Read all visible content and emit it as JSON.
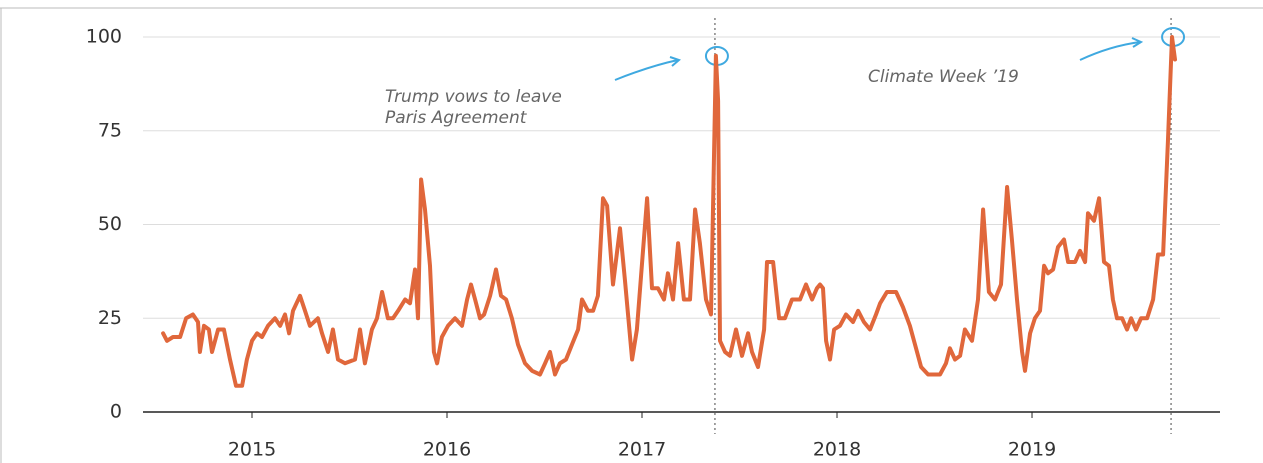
{
  "chart_data": {
    "type": "line",
    "x": [
      2014.544,
      2014.564,
      2014.595,
      2014.631,
      2014.662,
      2014.697,
      2014.723,
      2014.733,
      2014.754,
      2014.779,
      2014.795,
      2014.826,
      2014.856,
      2014.887,
      2014.918,
      2014.949,
      2014.974,
      2015.0,
      2015.026,
      2015.051,
      2015.082,
      2015.118,
      2015.144,
      2015.169,
      2015.19,
      2015.21,
      2015.246,
      2015.272,
      2015.297,
      2015.338,
      2015.359,
      2015.39,
      2015.415,
      2015.441,
      2015.477,
      2015.528,
      2015.554,
      2015.579,
      2015.615,
      2015.641,
      2015.667,
      2015.697,
      2015.723,
      2015.749,
      2015.785,
      2015.81,
      2015.836,
      2015.851,
      2015.867,
      2015.887,
      2015.913,
      2015.933,
      2015.949,
      2015.974,
      2016.005,
      2016.041,
      2016.077,
      2016.103,
      2016.123,
      2016.144,
      2016.169,
      2016.19,
      2016.221,
      2016.251,
      2016.277,
      2016.303,
      2016.333,
      2016.364,
      2016.4,
      2016.436,
      2016.477,
      2016.503,
      2016.528,
      2016.554,
      2016.579,
      2016.61,
      2016.641,
      2016.672,
      2016.692,
      2016.723,
      2016.749,
      2016.774,
      2016.8,
      2016.821,
      2016.851,
      2016.887,
      2016.913,
      2016.949,
      2016.974,
      2017.005,
      2017.026,
      2017.051,
      2017.082,
      2017.113,
      2017.133,
      2017.159,
      2017.185,
      2017.215,
      2017.246,
      2017.272,
      2017.297,
      2017.328,
      2017.354,
      2017.379,
      2017.39,
      2017.4,
      2017.426,
      2017.451,
      2017.482,
      2017.513,
      2017.544,
      2017.564,
      2017.595,
      2017.626,
      2017.641,
      2017.672,
      2017.703,
      2017.733,
      2017.769,
      2017.81,
      2017.841,
      2017.872,
      2017.897,
      2017.913,
      2017.928,
      2017.944,
      2017.964,
      2017.985,
      2018.015,
      2018.046,
      2018.082,
      2018.108,
      2018.138,
      2018.169,
      2018.2,
      2018.221,
      2018.256,
      2018.303,
      2018.338,
      2018.374,
      2018.4,
      2018.431,
      2018.467,
      2018.528,
      2018.559,
      2018.579,
      2018.605,
      2018.631,
      2018.656,
      2018.692,
      2018.723,
      2018.749,
      2018.779,
      2018.81,
      2018.841,
      2018.872,
      2018.897,
      2018.923,
      2018.949,
      2018.964,
      2018.99,
      2019.015,
      2019.041,
      2019.062,
      2019.082,
      2019.108,
      2019.133,
      2019.164,
      2019.185,
      2019.221,
      2019.246,
      2019.272,
      2019.287,
      2019.318,
      2019.344,
      2019.369,
      2019.395,
      2019.415,
      2019.436,
      2019.462,
      2019.487,
      2019.508,
      2019.533,
      2019.559,
      2019.59,
      2019.621,
      2019.646,
      2019.672,
      2019.697,
      2019.718,
      2019.733
    ],
    "series": [
      {
        "color": "#e0673b",
        "values": [
          21,
          19,
          20,
          20,
          25,
          26,
          24,
          16,
          23,
          22,
          16,
          22,
          22,
          14,
          7,
          7,
          14,
          19,
          21,
          20,
          23,
          25,
          23,
          26,
          21,
          27,
          31,
          27,
          23,
          25,
          21,
          16,
          22,
          14,
          13,
          14,
          22,
          13,
          22,
          25,
          32,
          25,
          25,
          27,
          30,
          29,
          38,
          25,
          62,
          54,
          39,
          16,
          13,
          20,
          23,
          25,
          23,
          30,
          34,
          30,
          25,
          26,
          31,
          38,
          31,
          30,
          25,
          18,
          13,
          11,
          10,
          13,
          16,
          10,
          13,
          14,
          18,
          22,
          30,
          27,
          27,
          31,
          57,
          55,
          34,
          49,
          35,
          14,
          22,
          43,
          57,
          33,
          33,
          30,
          37,
          30,
          45,
          30,
          30,
          54,
          45,
          30,
          26,
          95,
          83,
          19,
          16,
          15,
          22,
          15,
          21,
          16,
          12,
          22,
          40,
          40,
          25,
          25,
          30,
          30,
          34,
          30,
          33,
          34,
          33,
          19,
          14,
          22,
          23,
          26,
          24,
          27,
          24,
          22,
          26,
          29,
          32,
          32,
          28,
          23,
          18,
          12,
          10,
          10,
          13,
          17,
          14,
          15,
          22,
          19,
          30,
          54,
          32,
          30,
          34,
          60,
          46,
          30,
          16,
          11,
          21,
          25,
          27,
          39,
          37,
          38,
          44,
          46,
          40,
          40,
          43,
          40,
          53,
          51,
          57,
          40,
          39,
          30,
          25,
          25,
          22,
          25,
          22,
          25,
          25,
          30,
          42,
          42,
          72,
          100,
          94
        ]
      }
    ],
    "xlim": [
      2014.441,
      2019.964
    ],
    "xticks": [
      2015,
      2016,
      2017,
      2018,
      2019
    ],
    "ylim": [
      0,
      100
    ],
    "yticks": [
      0,
      25,
      50,
      75,
      100
    ],
    "grid": true,
    "events": [
      {
        "x": 2017.374,
        "label": [
          "Trump vows to leave",
          "Paris Agreement"
        ]
      },
      {
        "x": 2019.713,
        "label": [
          "Climate Week ’19"
        ]
      }
    ]
  }
}
